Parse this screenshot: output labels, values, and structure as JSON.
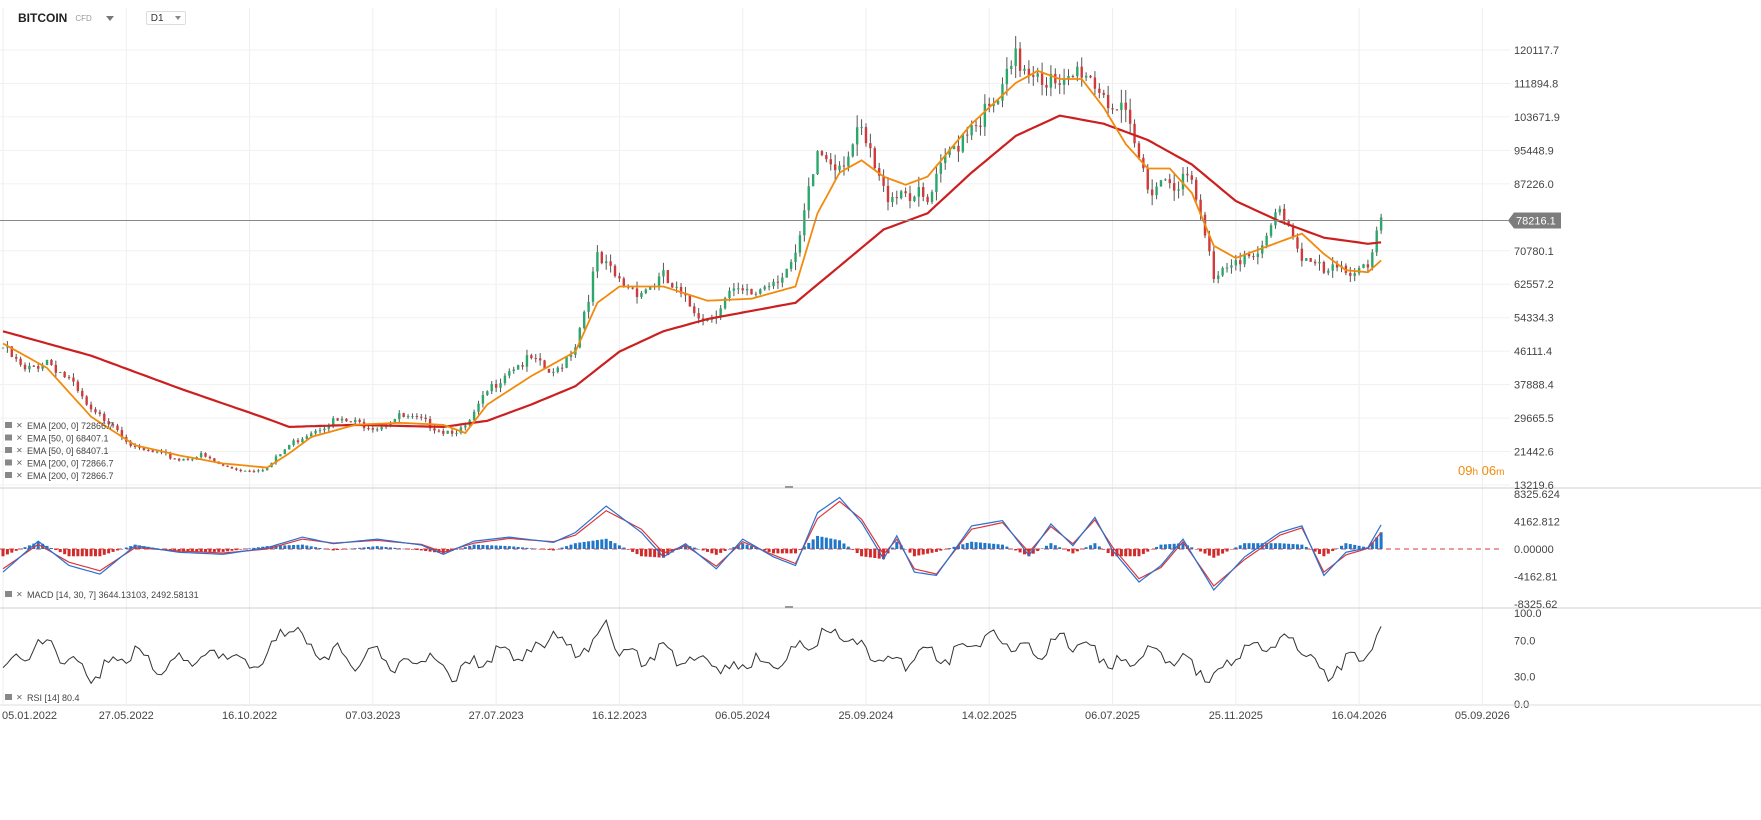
{
  "symbol": {
    "name": "BITCOIN",
    "sub": "CFD",
    "timeframe": "D1"
  },
  "colors": {
    "ema200": "#cc1f1f",
    "ema50": "#f28a0c",
    "price_line": "#888888",
    "macd_line": "#2a6fd1",
    "signal_line": "#d9383a",
    "hist_pos": "#1f77c9",
    "hist_neg": "#d12a2a",
    "rsi": "#333333",
    "candle_up": "#2aa86b",
    "candle_down": "#d13a3a",
    "candle_flat": "#555555"
  },
  "countdown": {
    "hours": "09",
    "h_unit": "h",
    "minutes": "06",
    "m_unit": "m"
  },
  "chart_data": [
    {
      "type": "line",
      "name": "price",
      "x_ticks": [
        "05.01.2022",
        "27.05.2022",
        "16.10.2022",
        "07.03.2023",
        "27.07.2023",
        "16.12.2023",
        "06.05.2024",
        "25.09.2024",
        "14.02.2025",
        "06.07.2025",
        "25.11.2025",
        "16.04.2026",
        "05.09.2026"
      ],
      "y_ticks": [
        "120117.7",
        "111894.8",
        "103671.9",
        "95448.9",
        "87226.0",
        "78216.1",
        "70780.1",
        "62557.2",
        "54334.3",
        "46111.4",
        "37888.4",
        "29665.5",
        "21442.6",
        "13219.6"
      ],
      "ylim": [
        13219.6,
        120117.7
      ],
      "last_price": 78216.1,
      "last_price_label": "78216.1",
      "legend": [
        {
          "label": "EMA [200, 0] 72866.7"
        },
        {
          "label": "EMA [50, 0] 68407.1"
        },
        {
          "label": "EMA [50, 0] 68407.1"
        },
        {
          "label": "EMA [200, 0] 72866.7"
        },
        {
          "label": "EMA [200, 0] 72866.7"
        }
      ],
      "close": [
        [
          0,
          47000
        ],
        [
          5,
          41000
        ],
        [
          10,
          44000
        ],
        [
          15,
          39000
        ],
        [
          20,
          31000
        ],
        [
          25,
          28500
        ],
        [
          30,
          22000
        ],
        [
          35,
          21000
        ],
        [
          40,
          19500
        ],
        [
          45,
          20500
        ],
        [
          50,
          17800
        ],
        [
          55,
          16800
        ],
        [
          60,
          17500
        ],
        [
          65,
          23000
        ],
        [
          70,
          26500
        ],
        [
          75,
          29000
        ],
        [
          80,
          28500
        ],
        [
          85,
          27500
        ],
        [
          90,
          30000
        ],
        [
          95,
          29000
        ],
        [
          100,
          26500
        ],
        [
          105,
          27000
        ],
        [
          110,
          36000
        ],
        [
          115,
          42000
        ],
        [
          120,
          44000
        ],
        [
          125,
          40000
        ],
        [
          130,
          48000
        ],
        [
          135,
          68500
        ],
        [
          140,
          63000
        ],
        [
          145,
          61000
        ],
        [
          150,
          64000
        ],
        [
          155,
          58000
        ],
        [
          160,
          54000
        ],
        [
          165,
          60000
        ],
        [
          170,
          60000
        ],
        [
          175,
          64000
        ],
        [
          180,
          68000
        ],
        [
          185,
          95000
        ],
        [
          190,
          93000
        ],
        [
          195,
          99000
        ],
        [
          200,
          85000
        ],
        [
          205,
          86000
        ],
        [
          210,
          82000
        ],
        [
          215,
          95000
        ],
        [
          220,
          103000
        ],
        [
          225,
          105000
        ],
        [
          230,
          117000
        ],
        [
          235,
          116000
        ],
        [
          240,
          109000
        ],
        [
          245,
          116000
        ],
        [
          250,
          110000
        ],
        [
          255,
          102000
        ],
        [
          260,
          87000
        ],
        [
          265,
          89000
        ],
        [
          270,
          87000
        ],
        [
          275,
          65000
        ],
        [
          280,
          70000
        ],
        [
          285,
          68000
        ],
        [
          290,
          82000
        ],
        [
          295,
          70000
        ],
        [
          300,
          65000
        ],
        [
          305,
          66000
        ],
        [
          310,
          68000
        ],
        [
          313,
          78000
        ]
      ],
      "ema200": [
        [
          0,
          51000
        ],
        [
          20,
          45000
        ],
        [
          40,
          37000
        ],
        [
          60,
          29500
        ],
        [
          65,
          27500
        ],
        [
          80,
          28000
        ],
        [
          100,
          27500
        ],
        [
          110,
          29000
        ],
        [
          120,
          33000
        ],
        [
          130,
          37500
        ],
        [
          140,
          46000
        ],
        [
          150,
          51000
        ],
        [
          160,
          54000
        ],
        [
          170,
          56000
        ],
        [
          180,
          58000
        ],
        [
          190,
          67000
        ],
        [
          200,
          76000
        ],
        [
          210,
          80000
        ],
        [
          220,
          90000
        ],
        [
          230,
          99000
        ],
        [
          240,
          104000
        ],
        [
          250,
          102000
        ],
        [
          260,
          98000
        ],
        [
          270,
          92000
        ],
        [
          280,
          83000
        ],
        [
          290,
          78000
        ],
        [
          300,
          74000
        ],
        [
          310,
          72500
        ],
        [
          313,
          72866.7
        ]
      ],
      "ema50": [
        [
          0,
          48000
        ],
        [
          10,
          42000
        ],
        [
          20,
          30000
        ],
        [
          30,
          23000
        ],
        [
          40,
          20500
        ],
        [
          50,
          18500
        ],
        [
          60,
          17500
        ],
        [
          65,
          21000
        ],
        [
          70,
          25000
        ],
        [
          80,
          28000
        ],
        [
          90,
          28500
        ],
        [
          100,
          28000
        ],
        [
          105,
          26000
        ],
        [
          110,
          33000
        ],
        [
          120,
          40000
        ],
        [
          130,
          46000
        ],
        [
          135,
          58000
        ],
        [
          140,
          62000
        ],
        [
          150,
          62000
        ],
        [
          160,
          58500
        ],
        [
          170,
          59000
        ],
        [
          180,
          62000
        ],
        [
          185,
          80000
        ],
        [
          190,
          90000
        ],
        [
          195,
          93000
        ],
        [
          200,
          89000
        ],
        [
          205,
          87000
        ],
        [
          210,
          89000
        ],
        [
          220,
          102000
        ],
        [
          230,
          112000
        ],
        [
          235,
          115000
        ],
        [
          240,
          113000
        ],
        [
          245,
          113000
        ],
        [
          250,
          106000
        ],
        [
          255,
          97000
        ],
        [
          260,
          91000
        ],
        [
          265,
          91000
        ],
        [
          270,
          85000
        ],
        [
          275,
          72000
        ],
        [
          280,
          69000
        ],
        [
          290,
          73000
        ],
        [
          295,
          75000
        ],
        [
          300,
          70000
        ],
        [
          305,
          66000
        ],
        [
          310,
          65500
        ],
        [
          313,
          68407.1
        ]
      ]
    },
    {
      "type": "line",
      "name": "MACD",
      "legend_label": "MACD [14, 30, 7] 3644.13103, 2492.58131",
      "y_ticks": [
        "8325.624",
        "4162.812",
        "0.00000",
        "-4162.81",
        "-8325.62"
      ],
      "ylim": [
        -8325.62,
        8325.624
      ],
      "macd": [
        [
          0,
          -3500
        ],
        [
          8,
          1200
        ],
        [
          15,
          -2500
        ],
        [
          22,
          -3800
        ],
        [
          30,
          500
        ],
        [
          40,
          -500
        ],
        [
          50,
          -800
        ],
        [
          60,
          200
        ],
        [
          68,
          1800
        ],
        [
          75,
          800
        ],
        [
          85,
          1500
        ],
        [
          95,
          600
        ],
        [
          100,
          -800
        ],
        [
          107,
          1200
        ],
        [
          115,
          1800
        ],
        [
          125,
          1000
        ],
        [
          130,
          2500
        ],
        [
          137,
          6500
        ],
        [
          145,
          2500
        ],
        [
          150,
          -1200
        ],
        [
          155,
          800
        ],
        [
          162,
          -3000
        ],
        [
          168,
          1500
        ],
        [
          175,
          -1200
        ],
        [
          180,
          -2500
        ],
        [
          185,
          5500
        ],
        [
          190,
          7800
        ],
        [
          195,
          4000
        ],
        [
          200,
          -1500
        ],
        [
          203,
          2000
        ],
        [
          207,
          -3500
        ],
        [
          212,
          -4000
        ],
        [
          220,
          3500
        ],
        [
          227,
          4300
        ],
        [
          233,
          -1000
        ],
        [
          238,
          3800
        ],
        [
          243,
          500
        ],
        [
          248,
          4800
        ],
        [
          252,
          -200
        ],
        [
          258,
          -5000
        ],
        [
          263,
          -2500
        ],
        [
          268,
          1500
        ],
        [
          275,
          -6200
        ],
        [
          282,
          -1200
        ],
        [
          290,
          2500
        ],
        [
          295,
          3500
        ],
        [
          300,
          -4000
        ],
        [
          305,
          -500
        ],
        [
          310,
          200
        ],
        [
          313,
          3644.13
        ]
      ],
      "signal": [
        [
          0,
          -3000
        ],
        [
          8,
          700
        ],
        [
          15,
          -2000
        ],
        [
          22,
          -3300
        ],
        [
          30,
          200
        ],
        [
          40,
          -300
        ],
        [
          50,
          -600
        ],
        [
          60,
          0
        ],
        [
          68,
          1500
        ],
        [
          75,
          900
        ],
        [
          85,
          1300
        ],
        [
          95,
          700
        ],
        [
          100,
          -500
        ],
        [
          107,
          900
        ],
        [
          115,
          1600
        ],
        [
          125,
          1100
        ],
        [
          130,
          2100
        ],
        [
          137,
          5800
        ],
        [
          145,
          3000
        ],
        [
          150,
          -600
        ],
        [
          155,
          500
        ],
        [
          162,
          -2600
        ],
        [
          168,
          1100
        ],
        [
          175,
          -900
        ],
        [
          180,
          -2200
        ],
        [
          185,
          4600
        ],
        [
          190,
          7200
        ],
        [
          195,
          4500
        ],
        [
          200,
          -800
        ],
        [
          203,
          1500
        ],
        [
          207,
          -3000
        ],
        [
          212,
          -3800
        ],
        [
          220,
          3000
        ],
        [
          227,
          4000
        ],
        [
          233,
          -500
        ],
        [
          238,
          3400
        ],
        [
          243,
          800
        ],
        [
          248,
          4400
        ],
        [
          252,
          300
        ],
        [
          258,
          -4500
        ],
        [
          263,
          -2800
        ],
        [
          268,
          1100
        ],
        [
          275,
          -5600
        ],
        [
          282,
          -1600
        ],
        [
          290,
          2100
        ],
        [
          295,
          3200
        ],
        [
          300,
          -3500
        ],
        [
          305,
          -900
        ],
        [
          310,
          100
        ],
        [
          313,
          2492.58
        ]
      ]
    },
    {
      "type": "line",
      "name": "RSI",
      "legend_label": "RSI [14] 80.4",
      "y_ticks": [
        "100.0",
        "70.0",
        "30.0",
        "0.0"
      ],
      "ylim": [
        0,
        100
      ],
      "values": [
        [
          0,
          40
        ],
        [
          5,
          55
        ],
        [
          10,
          68
        ],
        [
          15,
          45
        ],
        [
          20,
          32
        ],
        [
          25,
          45
        ],
        [
          30,
          60
        ],
        [
          35,
          40
        ],
        [
          40,
          50
        ],
        [
          45,
          48
        ],
        [
          50,
          60
        ],
        [
          55,
          40
        ],
        [
          60,
          55
        ],
        [
          65,
          88
        ],
        [
          68,
          70
        ],
        [
          72,
          50
        ],
        [
          75,
          60
        ],
        [
          80,
          45
        ],
        [
          85,
          55
        ],
        [
          90,
          38
        ],
        [
          95,
          55
        ],
        [
          100,
          42
        ],
        [
          103,
          28
        ],
        [
          107,
          45
        ],
        [
          112,
          55
        ],
        [
          118,
          50
        ],
        [
          122,
          62
        ],
        [
          125,
          85
        ],
        [
          128,
          55
        ],
        [
          133,
          65
        ],
        [
          137,
          88
        ],
        [
          140,
          58
        ],
        [
          145,
          50
        ],
        [
          150,
          62
        ],
        [
          155,
          45
        ],
        [
          160,
          50
        ],
        [
          165,
          38
        ],
        [
          170,
          48
        ],
        [
          175,
          42
        ],
        [
          180,
          60
        ],
        [
          185,
          72
        ],
        [
          190,
          80
        ],
        [
          195,
          60
        ],
        [
          200,
          50
        ],
        [
          205,
          45
        ],
        [
          210,
          55
        ],
        [
          215,
          50
        ],
        [
          220,
          70
        ],
        [
          225,
          72
        ],
        [
          230,
          62
        ],
        [
          235,
          55
        ],
        [
          240,
          70
        ],
        [
          245,
          65
        ],
        [
          250,
          50
        ],
        [
          255,
          45
        ],
        [
          260,
          60
        ],
        [
          265,
          50
        ],
        [
          270,
          45
        ],
        [
          275,
          25
        ],
        [
          280,
          55
        ],
        [
          285,
          62
        ],
        [
          290,
          70
        ],
        [
          293,
          72
        ],
        [
          297,
          48
        ],
        [
          300,
          28
        ],
        [
          305,
          52
        ],
        [
          310,
          55
        ],
        [
          313,
          80.4
        ]
      ]
    }
  ]
}
